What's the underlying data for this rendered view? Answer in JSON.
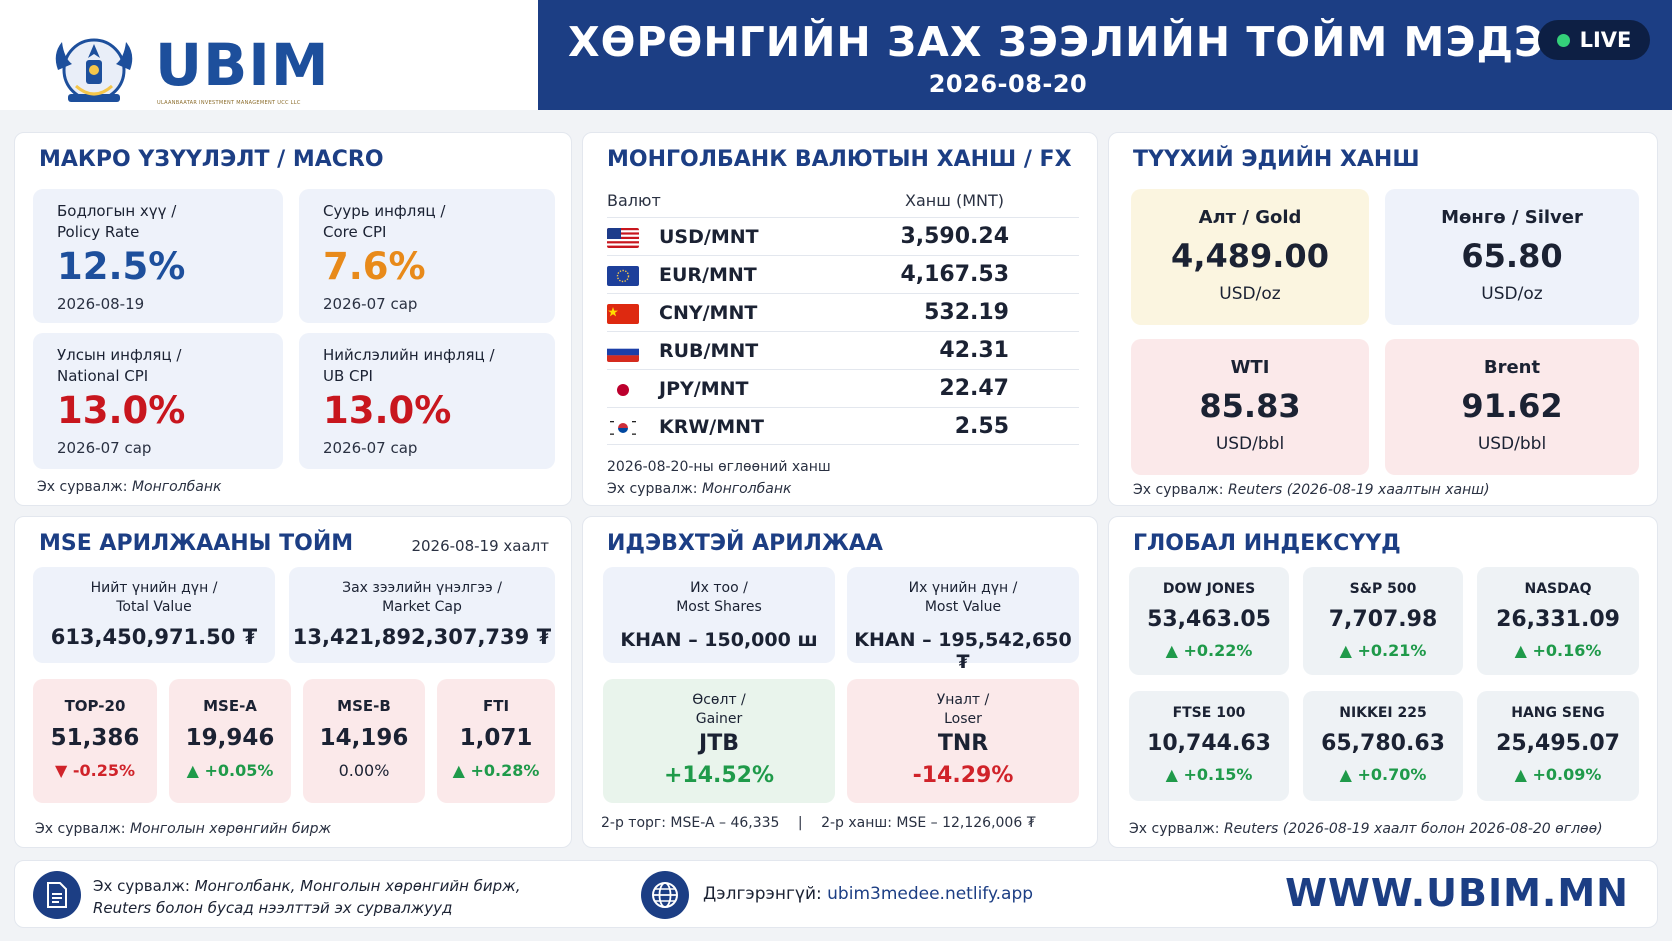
{
  "header": {
    "brand": "UBIM",
    "brand_sub": "ULAANBAATAR INVESTMENT MANAGEMENT UCC LLC",
    "title": "ХӨРӨНГИЙН ЗАХ ЗЭЭЛИЙН ТОЙМ МЭДЭЭ",
    "date": "2026-08-20",
    "live": "LIVE"
  },
  "macro": {
    "title": "МАКРО ҮЗҮҮЛЭЛТ / MACRO",
    "cards": [
      {
        "label1": "Бодлогын хүү /",
        "label2": "Policy Rate",
        "value": "12.5%",
        "date": "2026-08-19",
        "color": "#1d4f9c"
      },
      {
        "label1": "Суурь инфляц /",
        "label2": "Core CPI",
        "value": "7.6%",
        "date": "2026-07 сар",
        "color": "#e88a1a"
      },
      {
        "label1": "Улсын инфляц /",
        "label2": "National CPI",
        "value": "13.0%",
        "date": "2026-07 сар",
        "color": "#c8161e"
      },
      {
        "label1": "Нийслэлийн инфляц /",
        "label2": "UB CPI",
        "value": "13.0%",
        "date": "2026-07 сар",
        "color": "#c8161e"
      }
    ],
    "source_prefix": "Эх сурвалж:",
    "source": "Монголбанк"
  },
  "fx": {
    "title": "МОНГОЛБАНК ВАЛЮТЫН ХАНШ / FX",
    "col_currency": "Валют",
    "col_rate": "Ханш (MNT)",
    "rows": [
      {
        "pair": "USD/MNT",
        "rate": "3,590.24",
        "flag": "us-flag-icon"
      },
      {
        "pair": "EUR/MNT",
        "rate": "4,167.53",
        "flag": "eu-flag-icon"
      },
      {
        "pair": "CNY/MNT",
        "rate": "532.19",
        "flag": "cn-flag-icon"
      },
      {
        "pair": "RUB/MNT",
        "rate": "42.31",
        "flag": "ru-flag-icon"
      },
      {
        "pair": "JPY/MNT",
        "rate": "22.47",
        "flag": "jp-flag-icon"
      },
      {
        "pair": "KRW/MNT",
        "rate": "2.55",
        "flag": "kr-flag-icon"
      }
    ],
    "note": "2026-08-20-ны өглөөний ханш",
    "source_prefix": "Эх сурвалж:",
    "source": "Монголбанк"
  },
  "commodities": {
    "title": "ТҮҮХИЙ ЭДИЙН ХАНШ",
    "items": [
      {
        "label": "Алт / Gold",
        "value": "4,489.00",
        "unit": "USD/oz"
      },
      {
        "label": "Мөнгө / Silver",
        "value": "65.80",
        "unit": "USD/oz"
      },
      {
        "label": "WTI",
        "value": "85.83",
        "unit": "USD/bbl"
      },
      {
        "label": "Brent",
        "value": "91.62",
        "unit": "USD/bbl"
      }
    ],
    "source_prefix": "Эх сурвалж:",
    "source": "Reuters (2026-08-19 хаалтын ханш)"
  },
  "mse": {
    "title": "MSE АРИЛЖААНЫ ТОЙМ",
    "date": "2026-08-19 хаалт",
    "total_label1": "Нийт үнийн дүн /",
    "total_label2": "Total Value",
    "total_value": "613,450,971.50 ₮",
    "cap_label1": "Зах зээлийн үнэлгээ /",
    "cap_label2": "Market Cap",
    "cap_value": "13,421,892,307,739 ₮",
    "indices": [
      {
        "label": "TOP-20",
        "value": "51,386",
        "change": "▼ -0.25%",
        "dir": "down"
      },
      {
        "label": "MSE-A",
        "value": "19,946",
        "change": "▲ +0.05%",
        "dir": "up"
      },
      {
        "label": "MSE-B",
        "value": "14,196",
        "change": "0.00%",
        "dir": "flat"
      },
      {
        "label": "FTI",
        "value": "1,071",
        "change": "▲ +0.28%",
        "dir": "up"
      }
    ],
    "source_prefix": "Эх сурвалж:",
    "source": "Монголын хөрөнгийн бирж"
  },
  "active": {
    "title": "ИДЭВХТЭЙ АРИЛЖАА",
    "most_shares_label1": "Их тоо /",
    "most_shares_label2": "Most Shares",
    "most_shares_value": "KHAN – 150,000 ш",
    "most_value_label1": "Их үнийн дүн /",
    "most_value_label2": "Most Value",
    "most_value_value": "KHAN – 195,542,650 ₮",
    "gainer_label1": "Өсөлт /",
    "gainer_label2": "Gainer",
    "gainer_name": "JTB",
    "gainer_change": "+14.52%",
    "loser_label1": "Уналт /",
    "loser_label2": "Loser",
    "loser_name": "TNR",
    "loser_change": "-14.29%",
    "note_left": "2-р торг: MSE-A – 46,335",
    "note_sep": "|",
    "note_right": "2-р ханш: MSE – 12,126,006 ₮"
  },
  "global": {
    "title": "ГЛОБАЛ ИНДЕКСҮҮД",
    "items": [
      {
        "label": "DOW JONES",
        "value": "53,463.05",
        "change": "▲ +0.22%"
      },
      {
        "label": "S&P 500",
        "value": "7,707.98",
        "change": "▲ +0.21%"
      },
      {
        "label": "NASDAQ",
        "value": "26,331.09",
        "change": "▲ +0.16%"
      },
      {
        "label": "FTSE 100",
        "value": "10,744.63",
        "change": "▲ +0.15%"
      },
      {
        "label": "NIKKEI 225",
        "value": "65,780.63",
        "change": "▲ +0.70%"
      },
      {
        "label": "HANG SENG",
        "value": "25,495.07",
        "change": "▲ +0.09%"
      }
    ],
    "source_prefix": "Эх сурвалж:",
    "source": "Reuters (2026-08-19 хаалт болон 2026-08-20 өглөө)"
  },
  "footer": {
    "source_prefix": "Эх сурвалж:",
    "source_line1": "Монголбанк, Монголын хөрөнгийн бирж,",
    "source_line2": "Reuters болон бусад нээлттэй эх сурвалжууд",
    "more_label": "Дэлгэрэнгүй:",
    "more_link": "ubim3medee.netlify.app",
    "website": "WWW.UBIM.MN"
  }
}
